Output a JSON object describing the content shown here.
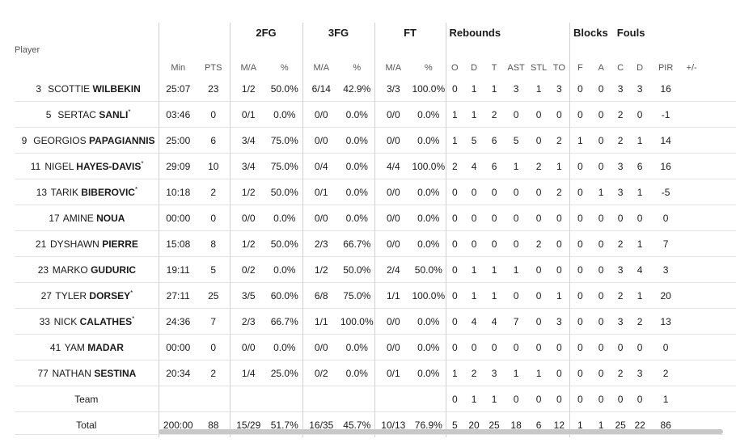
{
  "groups": {
    "fg2": "2FG",
    "fg3": "3FG",
    "ft": "FT",
    "reb": "Rebounds",
    "blk": "Blocks",
    "fouls": "Fouls"
  },
  "headers": {
    "player": "Player",
    "min": "Min",
    "pts": "PTS",
    "fg2_ma": "M/A",
    "fg2_pct": "%",
    "fg3_ma": "M/A",
    "fg3_pct": "%",
    "ft_ma": "M/A",
    "ft_pct": "%",
    "o": "O",
    "d": "D",
    "t": "T",
    "ast": "AST",
    "stl": "STL",
    "to": "TO",
    "f": "F",
    "a": "A",
    "c": "C",
    "fd": "D",
    "pir": "PIR",
    "pm": "+/-"
  },
  "players": [
    {
      "num": "3",
      "first": "SCOTTIE",
      "last": "WILBEKIN",
      "star": "",
      "min": "25:07",
      "pts": "23",
      "fg2_ma": "1/2",
      "fg2_pct": "50.0%",
      "fg3_ma": "6/14",
      "fg3_pct": "42.9%",
      "ft_ma": "3/3",
      "ft_pct": "100.0%",
      "o": "0",
      "d": "1",
      "t": "1",
      "ast": "3",
      "stl": "1",
      "to": "3",
      "f": "0",
      "a": "0",
      "c": "3",
      "fd": "3",
      "pir": "16",
      "pm": ""
    },
    {
      "num": "5",
      "first": "SERTAC",
      "last": "SANLI",
      "star": "*",
      "min": "03:46",
      "pts": "0",
      "fg2_ma": "0/1",
      "fg2_pct": "0.0%",
      "fg3_ma": "0/0",
      "fg3_pct": "0.0%",
      "ft_ma": "0/0",
      "ft_pct": "0.0%",
      "o": "1",
      "d": "1",
      "t": "2",
      "ast": "0",
      "stl": "0",
      "to": "0",
      "f": "0",
      "a": "0",
      "c": "2",
      "fd": "0",
      "pir": "-1",
      "pm": ""
    },
    {
      "num": "9",
      "first": "GEORGIOS",
      "last": "PAPAGIANNIS",
      "star": "",
      "min": "25:00",
      "pts": "6",
      "fg2_ma": "3/4",
      "fg2_pct": "75.0%",
      "fg3_ma": "0/0",
      "fg3_pct": "0.0%",
      "ft_ma": "0/0",
      "ft_pct": "0.0%",
      "o": "1",
      "d": "5",
      "t": "6",
      "ast": "5",
      "stl": "0",
      "to": "2",
      "f": "1",
      "a": "0",
      "c": "2",
      "fd": "1",
      "pir": "14",
      "pm": ""
    },
    {
      "num": "11",
      "first": "NIGEL",
      "last": "HAYES-DAVIS",
      "star": "*",
      "min": "29:09",
      "pts": "10",
      "fg2_ma": "3/4",
      "fg2_pct": "75.0%",
      "fg3_ma": "0/4",
      "fg3_pct": "0.0%",
      "ft_ma": "4/4",
      "ft_pct": "100.0%",
      "o": "2",
      "d": "4",
      "t": "6",
      "ast": "1",
      "stl": "2",
      "to": "1",
      "f": "0",
      "a": "0",
      "c": "3",
      "fd": "6",
      "pir": "16",
      "pm": ""
    },
    {
      "num": "13",
      "first": "TARIK",
      "last": "BIBEROVIC",
      "star": "*",
      "min": "10:18",
      "pts": "2",
      "fg2_ma": "1/2",
      "fg2_pct": "50.0%",
      "fg3_ma": "0/1",
      "fg3_pct": "0.0%",
      "ft_ma": "0/0",
      "ft_pct": "0.0%",
      "o": "0",
      "d": "0",
      "t": "0",
      "ast": "0",
      "stl": "0",
      "to": "2",
      "f": "0",
      "a": "1",
      "c": "3",
      "fd": "1",
      "pir": "-5",
      "pm": ""
    },
    {
      "num": "17",
      "first": "AMINE",
      "last": "NOUA",
      "star": "",
      "min": "00:00",
      "pts": "0",
      "fg2_ma": "0/0",
      "fg2_pct": "0.0%",
      "fg3_ma": "0/0",
      "fg3_pct": "0.0%",
      "ft_ma": "0/0",
      "ft_pct": "0.0%",
      "o": "0",
      "d": "0",
      "t": "0",
      "ast": "0",
      "stl": "0",
      "to": "0",
      "f": "0",
      "a": "0",
      "c": "0",
      "fd": "0",
      "pir": "0",
      "pm": ""
    },
    {
      "num": "21",
      "first": "DYSHAWN",
      "last": "PIERRE",
      "star": "",
      "min": "15:08",
      "pts": "8",
      "fg2_ma": "1/2",
      "fg2_pct": "50.0%",
      "fg3_ma": "2/3",
      "fg3_pct": "66.7%",
      "ft_ma": "0/0",
      "ft_pct": "0.0%",
      "o": "0",
      "d": "0",
      "t": "0",
      "ast": "0",
      "stl": "2",
      "to": "0",
      "f": "0",
      "a": "0",
      "c": "2",
      "fd": "1",
      "pir": "7",
      "pm": ""
    },
    {
      "num": "23",
      "first": "MARKO",
      "last": "GUDURIC",
      "star": "",
      "min": "19:11",
      "pts": "5",
      "fg2_ma": "0/2",
      "fg2_pct": "0.0%",
      "fg3_ma": "1/2",
      "fg3_pct": "50.0%",
      "ft_ma": "2/4",
      "ft_pct": "50.0%",
      "o": "0",
      "d": "1",
      "t": "1",
      "ast": "1",
      "stl": "0",
      "to": "0",
      "f": "0",
      "a": "0",
      "c": "3",
      "fd": "4",
      "pir": "3",
      "pm": ""
    },
    {
      "num": "27",
      "first": "TYLER",
      "last": "DORSEY",
      "star": "*",
      "min": "27:11",
      "pts": "25",
      "fg2_ma": "3/5",
      "fg2_pct": "60.0%",
      "fg3_ma": "6/8",
      "fg3_pct": "75.0%",
      "ft_ma": "1/1",
      "ft_pct": "100.0%",
      "o": "0",
      "d": "1",
      "t": "1",
      "ast": "0",
      "stl": "0",
      "to": "1",
      "f": "0",
      "a": "0",
      "c": "2",
      "fd": "1",
      "pir": "20",
      "pm": ""
    },
    {
      "num": "33",
      "first": "NICK",
      "last": "CALATHES",
      "star": "*",
      "min": "24:36",
      "pts": "7",
      "fg2_ma": "2/3",
      "fg2_pct": "66.7%",
      "fg3_ma": "1/1",
      "fg3_pct": "100.0%",
      "ft_ma": "0/0",
      "ft_pct": "0.0%",
      "o": "0",
      "d": "4",
      "t": "4",
      "ast": "7",
      "stl": "0",
      "to": "3",
      "f": "0",
      "a": "0",
      "c": "3",
      "fd": "2",
      "pir": "13",
      "pm": ""
    },
    {
      "num": "41",
      "first": "YAM",
      "last": "MADAR",
      "star": "",
      "min": "00:00",
      "pts": "0",
      "fg2_ma": "0/0",
      "fg2_pct": "0.0%",
      "fg3_ma": "0/0",
      "fg3_pct": "0.0%",
      "ft_ma": "0/0",
      "ft_pct": "0.0%",
      "o": "0",
      "d": "0",
      "t": "0",
      "ast": "0",
      "stl": "0",
      "to": "0",
      "f": "0",
      "a": "0",
      "c": "0",
      "fd": "0",
      "pir": "0",
      "pm": ""
    },
    {
      "num": "77",
      "first": "NATHAN",
      "last": "SESTINA",
      "star": "",
      "min": "20:34",
      "pts": "2",
      "fg2_ma": "1/4",
      "fg2_pct": "25.0%",
      "fg3_ma": "0/2",
      "fg3_pct": "0.0%",
      "ft_ma": "0/1",
      "ft_pct": "0.0%",
      "o": "1",
      "d": "2",
      "t": "3",
      "ast": "1",
      "stl": "1",
      "to": "0",
      "f": "0",
      "a": "0",
      "c": "2",
      "fd": "3",
      "pir": "2",
      "pm": ""
    }
  ],
  "team": {
    "label": "Team",
    "min": "",
    "pts": "",
    "fg2_ma": "",
    "fg2_pct": "",
    "fg3_ma": "",
    "fg3_pct": "",
    "ft_ma": "",
    "ft_pct": "",
    "o": "0",
    "d": "1",
    "t": "1",
    "ast": "0",
    "stl": "0",
    "to": "0",
    "f": "0",
    "a": "0",
    "c": "0",
    "fd": "0",
    "pir": "1",
    "pm": ""
  },
  "total": {
    "label": "Total",
    "min": "200:00",
    "pts": "88",
    "fg2_ma": "15/29",
    "fg2_pct": "51.7%",
    "fg3_ma": "16/35",
    "fg3_pct": "45.7%",
    "ft_ma": "10/13",
    "ft_pct": "76.9%",
    "o": "5",
    "d": "20",
    "t": "25",
    "ast": "18",
    "stl": "6",
    "to": "12",
    "f": "1",
    "a": "1",
    "c": "25",
    "fd": "22",
    "pir": "86",
    "pm": ""
  }
}
